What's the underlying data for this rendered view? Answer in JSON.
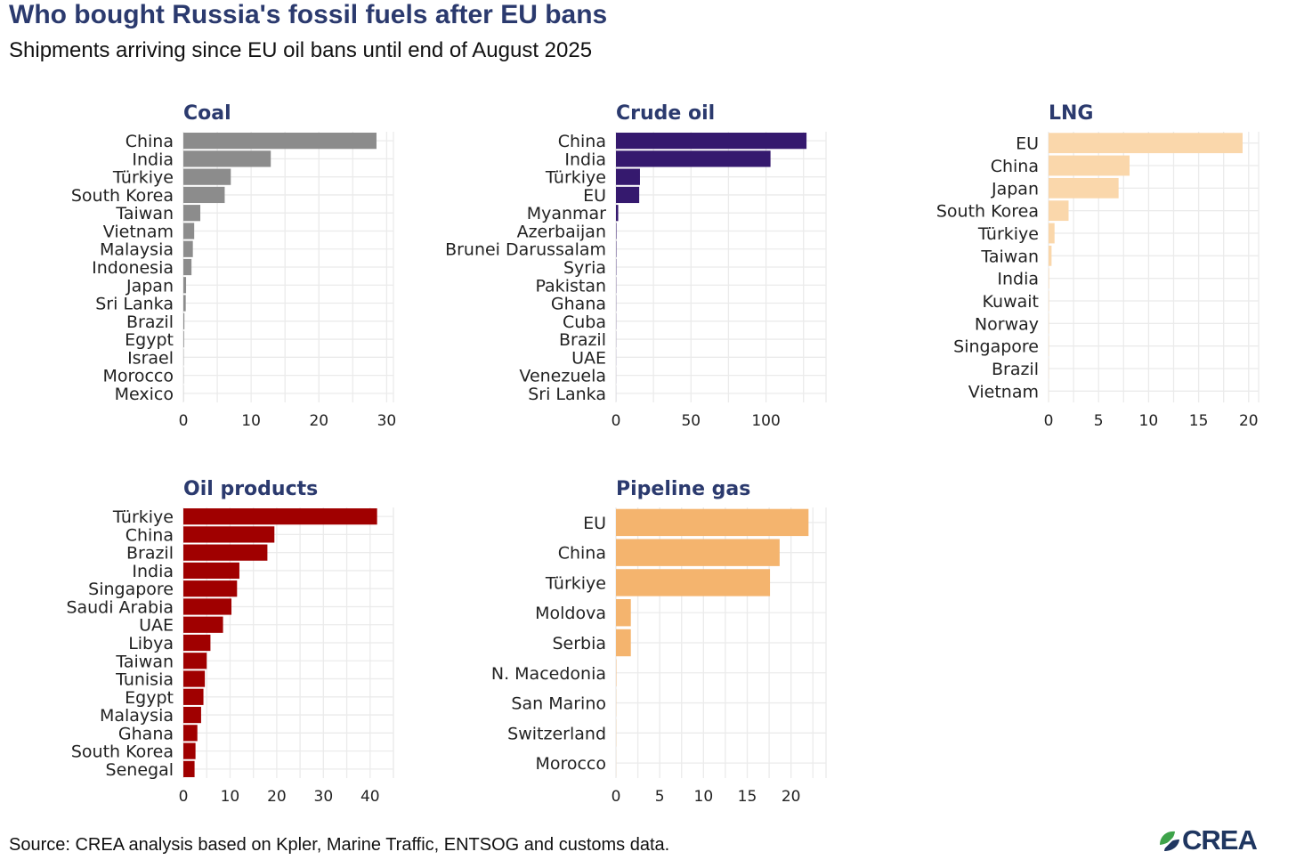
{
  "title": "Who bought Russia's fossil fuels after EU bans",
  "subtitle": "Shipments arriving since EU oil bans until end of August 2025",
  "source": "Source: CREA analysis based on Kpler, Marine Traffic, ENTSOG and customs data.",
  "logo": {
    "text": "CREA",
    "icon": "crea-leaf-icon"
  },
  "chart_data": [
    {
      "type": "bar",
      "orientation": "horizontal",
      "title": "Coal",
      "color": "#8c8c8c",
      "categories": [
        "China",
        "India",
        "Türkiye",
        "South Korea",
        "Taiwan",
        "Vietnam",
        "Malaysia",
        "Indonesia",
        "Japan",
        "Sri Lanka",
        "Brazil",
        "Egypt",
        "Israel",
        "Morocco",
        "Mexico"
      ],
      "values": [
        28.5,
        12.9,
        7.0,
        6.1,
        2.5,
        1.6,
        1.4,
        1.2,
        0.4,
        0.35,
        0.15,
        0.1,
        0.04,
        0.03,
        0.02
      ],
      "xlim": [
        0,
        31
      ],
      "xticks": [
        0,
        10,
        20,
        30
      ]
    },
    {
      "type": "bar",
      "orientation": "horizontal",
      "title": "Crude oil",
      "color": "#35196e",
      "categories": [
        "China",
        "India",
        "Türkiye",
        "EU",
        "Myanmar",
        "Azerbaijan",
        "Brunei Darussalam",
        "Syria",
        "Pakistan",
        "Ghana",
        "Cuba",
        "Brazil",
        "UAE",
        "Venezuela",
        "Sri Lanka"
      ],
      "values": [
        127,
        103,
        16,
        15.5,
        1.5,
        0.3,
        0.25,
        0.2,
        0.15,
        0.12,
        0.1,
        0.08,
        0.05,
        0.04,
        0.03
      ],
      "xlim": [
        0,
        140
      ],
      "xticks": [
        0,
        50,
        100
      ]
    },
    {
      "type": "bar",
      "orientation": "horizontal",
      "title": "LNG",
      "color": "#fad7ab",
      "categories": [
        "EU",
        "China",
        "Japan",
        "South Korea",
        "Türkiye",
        "Taiwan",
        "India",
        "Kuwait",
        "Norway",
        "Singapore",
        "Brazil",
        "Vietnam"
      ],
      "values": [
        19.4,
        8.1,
        7.0,
        2.0,
        0.6,
        0.3,
        0.05,
        0.04,
        0.03,
        0.03,
        0.02,
        0.01
      ],
      "xlim": [
        0,
        21
      ],
      "xticks": [
        0,
        5,
        10,
        15,
        20
      ]
    },
    {
      "type": "bar",
      "orientation": "horizontal",
      "title": "Oil products",
      "color": "#a00000",
      "categories": [
        "Türkiye",
        "China",
        "Brazil",
        "India",
        "Singapore",
        "Saudi Arabia",
        "UAE",
        "Libya",
        "Taiwan",
        "Tunisia",
        "Egypt",
        "Malaysia",
        "Ghana",
        "South Korea",
        "Senegal"
      ],
      "values": [
        41.5,
        19.5,
        18.0,
        12.0,
        11.5,
        10.3,
        8.5,
        5.8,
        5.0,
        4.6,
        4.3,
        3.8,
        3.0,
        2.6,
        2.4
      ],
      "xlim": [
        0,
        45
      ],
      "xticks": [
        0,
        10,
        20,
        30,
        40
      ]
    },
    {
      "type": "bar",
      "orientation": "horizontal",
      "title": "Pipeline gas",
      "color": "#f4b46e",
      "categories": [
        "EU",
        "China",
        "Türkiye",
        "Moldova",
        "Serbia",
        "N. Macedonia",
        "San Marino",
        "Switzerland",
        "Morocco"
      ],
      "values": [
        22.0,
        18.7,
        17.6,
        1.7,
        1.7,
        0.04,
        0.02,
        0.02,
        0.01
      ],
      "xlim": [
        0,
        24
      ],
      "xticks": [
        0,
        5,
        10,
        15,
        20
      ]
    }
  ]
}
